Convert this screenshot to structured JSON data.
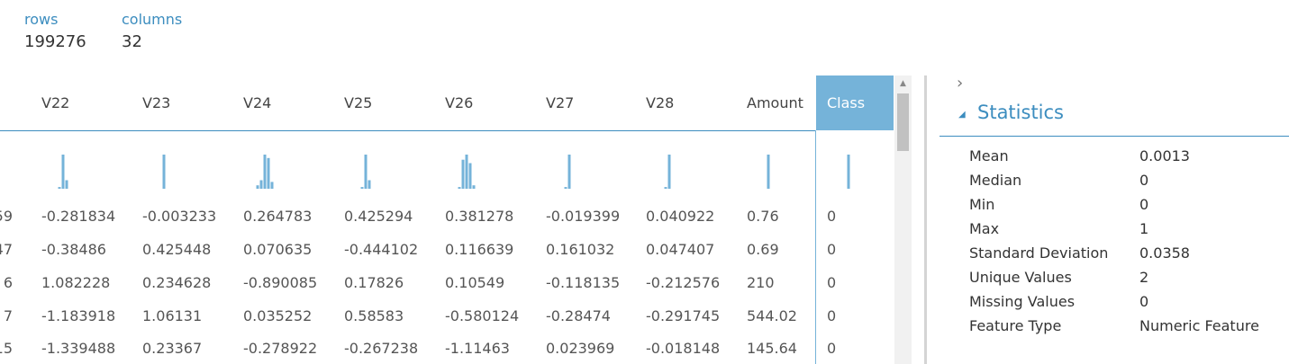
{
  "summary": {
    "rows_label": "rows",
    "rows_value": "199276",
    "columns_label": "columns",
    "columns_value": "32"
  },
  "table": {
    "columns": [
      "V22",
      "V23",
      "V24",
      "V25",
      "V26",
      "V27",
      "V28",
      "Amount",
      "Class"
    ],
    "partial_first_column": [
      "59",
      "47",
      "6",
      "7",
      "15"
    ],
    "rows": [
      [
        "-0.281834",
        "-0.003233",
        "0.264783",
        "0.425294",
        "0.381278",
        "-0.019399",
        "0.040922",
        "0.76",
        "0"
      ],
      [
        "-0.38486",
        "0.425448",
        "0.070635",
        "-0.444102",
        "0.116639",
        "0.161032",
        "0.047407",
        "0.69",
        "0"
      ],
      [
        "1.082228",
        "0.234628",
        "-0.890085",
        "0.17826",
        "0.10549",
        "-0.118135",
        "-0.212576",
        "210",
        "0"
      ],
      [
        "-1.183918",
        "1.06131",
        "0.035252",
        "0.58583",
        "-0.580124",
        "-0.28474",
        "-0.291745",
        "544.02",
        "0"
      ],
      [
        "-1.339488",
        "0.23367",
        "-0.278922",
        "-0.267238",
        "-1.11463",
        "0.023969",
        "-0.018148",
        "145.64",
        "0"
      ]
    ],
    "histogram_color": "#75b3d9",
    "histograms": [
      [
        0.05,
        1.0,
        0.25
      ],
      [
        1.0
      ],
      [
        0.1,
        0.25,
        1.0,
        0.9,
        0.2
      ],
      [
        0.05,
        1.0,
        0.25
      ],
      [
        0.05,
        0.85,
        1.0,
        0.75,
        0.1
      ],
      [
        0.05,
        1.0
      ],
      [
        0.05,
        1.0
      ],
      [
        1.0
      ],
      [
        1.0
      ]
    ]
  },
  "statistics": {
    "title": "Statistics",
    "items": [
      {
        "label": "Mean",
        "value": "0.0013"
      },
      {
        "label": "Median",
        "value": "0"
      },
      {
        "label": "Min",
        "value": "0"
      },
      {
        "label": "Max",
        "value": "1"
      },
      {
        "label": "Standard Deviation",
        "value": "0.0358"
      },
      {
        "label": "Unique Values",
        "value": "2"
      },
      {
        "label": "Missing Values",
        "value": "0"
      },
      {
        "label": "Feature Type",
        "value": "Numeric Feature"
      }
    ]
  },
  "icons": {
    "expand": "chevron-right-icon",
    "collapse": "triangle-down-icon",
    "scroll_up": "arrow-up-icon"
  }
}
